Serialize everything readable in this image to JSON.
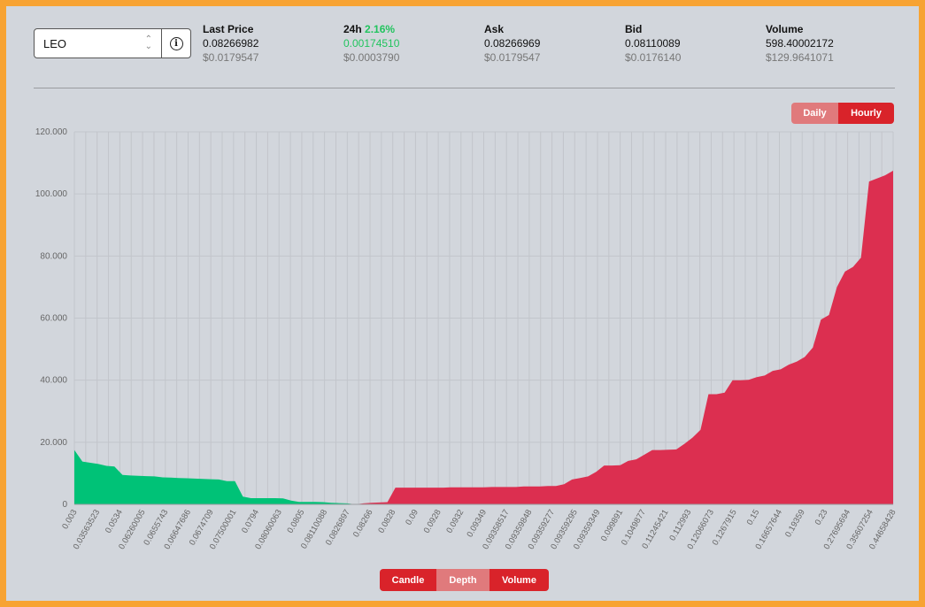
{
  "symbol": {
    "value": "LEO"
  },
  "stats": {
    "last_price": {
      "label": "Last Price",
      "value": "0.08266982",
      "usd": "$0.0179547"
    },
    "change_24h": {
      "label": "24h",
      "percent": "2.16%",
      "value": "0.00174510",
      "usd": "$0.0003790"
    },
    "ask": {
      "label": "Ask",
      "value": "0.08266969",
      "usd": "$0.0179547"
    },
    "bid": {
      "label": "Bid",
      "value": "0.08110089",
      "usd": "$0.0176140"
    },
    "volume": {
      "label": "Volume",
      "value": "598.40002172",
      "usd": "$129.9641071"
    }
  },
  "period_toggle": {
    "daily": "Daily",
    "hourly": "Hourly",
    "active": "Hourly"
  },
  "view_toggle": {
    "candle": "Candle",
    "depth": "Depth",
    "volume": "Volume",
    "active": "Depth"
  },
  "colors": {
    "bid": "#00c277",
    "ask": "#dc2f50",
    "accent": "#d9232a",
    "border": "#f7a333"
  },
  "chart_data": {
    "type": "area",
    "y_ticks": [
      "0",
      "20.000",
      "40.000",
      "60.000",
      "80.000",
      "100.000",
      "120.000"
    ],
    "ylim": [
      0,
      120000
    ],
    "grid": true,
    "x_tick_labels": [
      "0.003",
      "0.03563523",
      "0.0534",
      "0.06260005",
      "0.0655743",
      "0.06647686",
      "0.0674709",
      "0.07500001",
      "0.0794",
      "0.08060063",
      "0.0805",
      "0.08110088",
      "0.0826897",
      "0.08266",
      "0.0828",
      "0.09",
      "0.0928",
      "0.0932",
      "0.09349",
      "0.09358517",
      "0.09359848",
      "0.09359277",
      "0.09359295",
      "0.09359349",
      "0.099891",
      "0.1049877",
      "0.11245421",
      "0.112993",
      "0.12066073",
      "0.1267915",
      "0.15",
      "0.16657644",
      "0.19359",
      "0.23",
      "0.27695694",
      "0.35607254",
      "0.44658428"
    ],
    "series": [
      {
        "name": "Bids",
        "points": [
          [
            0,
            17500
          ],
          [
            1,
            13800
          ],
          [
            2,
            13400
          ],
          [
            3,
            13000
          ],
          [
            4,
            12400
          ],
          [
            5,
            12200
          ],
          [
            6,
            9500
          ],
          [
            7,
            9300
          ],
          [
            8,
            9200
          ],
          [
            9,
            9100
          ],
          [
            10,
            9000
          ],
          [
            11,
            8700
          ],
          [
            12,
            8600
          ],
          [
            13,
            8500
          ],
          [
            14,
            8400
          ],
          [
            15,
            8300
          ],
          [
            16,
            8200
          ],
          [
            17,
            8100
          ],
          [
            18,
            8000
          ],
          [
            19,
            7500
          ],
          [
            20,
            7500
          ],
          [
            21,
            2500
          ],
          [
            22,
            2000
          ],
          [
            23,
            2000
          ],
          [
            24,
            2000
          ],
          [
            25,
            2000
          ],
          [
            26,
            1900
          ],
          [
            27,
            1200
          ],
          [
            28,
            800
          ],
          [
            29,
            800
          ],
          [
            30,
            800
          ],
          [
            31,
            700
          ],
          [
            32,
            500
          ],
          [
            33,
            400
          ],
          [
            34,
            300
          ],
          [
            35,
            0
          ]
        ]
      },
      {
        "name": "Asks",
        "points": [
          [
            35,
            0
          ],
          [
            36,
            300
          ],
          [
            37,
            500
          ],
          [
            38,
            600
          ],
          [
            39,
            700
          ],
          [
            40,
            5400
          ],
          [
            41,
            5400
          ],
          [
            42,
            5400
          ],
          [
            43,
            5400
          ],
          [
            44,
            5400
          ],
          [
            45,
            5400
          ],
          [
            46,
            5400
          ],
          [
            47,
            5500
          ],
          [
            48,
            5500
          ],
          [
            49,
            5500
          ],
          [
            50,
            5500
          ],
          [
            51,
            5500
          ],
          [
            52,
            5600
          ],
          [
            53,
            5600
          ],
          [
            54,
            5600
          ],
          [
            55,
            5600
          ],
          [
            56,
            5800
          ],
          [
            57,
            5800
          ],
          [
            58,
            5800
          ],
          [
            59,
            5900
          ],
          [
            60,
            5900
          ],
          [
            61,
            6500
          ],
          [
            62,
            8000
          ],
          [
            63,
            8500
          ],
          [
            64,
            9000
          ],
          [
            65,
            10500
          ],
          [
            66,
            12500
          ],
          [
            67,
            12500
          ],
          [
            68,
            12600
          ],
          [
            69,
            14000
          ],
          [
            70,
            14500
          ],
          [
            71,
            16000
          ],
          [
            72,
            17500
          ],
          [
            73,
            17500
          ],
          [
            74,
            17600
          ],
          [
            75,
            17700
          ],
          [
            76,
            19500
          ],
          [
            77,
            21500
          ],
          [
            78,
            24000
          ],
          [
            79,
            35500
          ],
          [
            80,
            35500
          ],
          [
            81,
            36000
          ],
          [
            82,
            40000
          ],
          [
            83,
            40000
          ],
          [
            84,
            40100
          ],
          [
            85,
            41000
          ],
          [
            86,
            41500
          ],
          [
            87,
            43000
          ],
          [
            88,
            43500
          ],
          [
            89,
            45000
          ],
          [
            90,
            46000
          ],
          [
            91,
            47500
          ],
          [
            92,
            50500
          ],
          [
            93,
            59500
          ],
          [
            94,
            61000
          ],
          [
            95,
            70000
          ],
          [
            96,
            75000
          ],
          [
            97,
            76500
          ],
          [
            98,
            79500
          ],
          [
            99,
            104000
          ],
          [
            100,
            105000
          ],
          [
            101,
            106000
          ],
          [
            102,
            107500
          ]
        ]
      }
    ]
  }
}
